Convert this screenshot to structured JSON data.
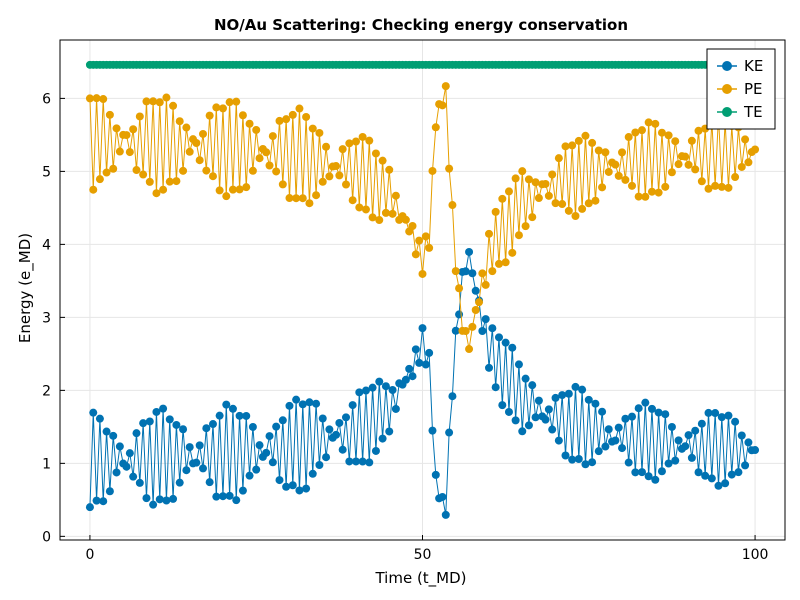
{
  "chart_data": {
    "type": "scatter",
    "title": "NO/Au Scattering: Checking energy conservation",
    "xlabel": "Time (t_MD)",
    "ylabel": "Energy (e_MD)",
    "xlim": [
      -4.5,
      104.5
    ],
    "ylim": [
      -0.05,
      6.8
    ],
    "xticks": [
      0,
      50,
      100
    ],
    "yticks": [
      0,
      1,
      2,
      3,
      4,
      5,
      6
    ],
    "grid": true,
    "legend_position": "top-right",
    "markers": "circle markers joined by thin lines",
    "t_start": 0,
    "t_end": 100,
    "t_step": 0.5,
    "series": [
      {
        "name": "KE",
        "color": "#0072b2",
        "key_points": [
          [
            0,
            0.4
          ],
          [
            10,
            0.45
          ],
          [
            20,
            0.5
          ],
          [
            30,
            0.6
          ],
          [
            40,
            0.9
          ],
          [
            45,
            1.3
          ],
          [
            48,
            1.9
          ],
          [
            50,
            2.4
          ],
          [
            51,
            2.2
          ],
          [
            52,
            0.7
          ],
          [
            53,
            0.35
          ],
          [
            53.5,
            0.28
          ],
          [
            54,
            1.2
          ],
          [
            55,
            2.6
          ],
          [
            56,
            3.4
          ],
          [
            57,
            3.6
          ],
          [
            60,
            2.1
          ],
          [
            65,
            1.4
          ],
          [
            70,
            1.1
          ],
          [
            80,
            0.85
          ],
          [
            90,
            0.75
          ],
          [
            100,
            0.7
          ]
        ],
        "oscillation_amplitude_points": [
          [
            0,
            1.25
          ],
          [
            20,
            1.25
          ],
          [
            35,
            1.2
          ],
          [
            45,
            0.9
          ],
          [
            50,
            0.5
          ],
          [
            52,
            0.15
          ],
          [
            56,
            0.3
          ],
          [
            60,
            0.9
          ],
          [
            70,
            1.0
          ],
          [
            100,
            0.95
          ]
        ]
      },
      {
        "name": "PE",
        "color": "#e69f00",
        "key_points": [
          [
            0,
            6.05
          ],
          [
            10,
            6.0
          ],
          [
            20,
            5.95
          ],
          [
            30,
            5.85
          ],
          [
            40,
            5.55
          ],
          [
            45,
            5.15
          ],
          [
            48,
            4.55
          ],
          [
            50,
            4.05
          ],
          [
            51,
            4.25
          ],
          [
            52,
            5.75
          ],
          [
            53,
            6.1
          ],
          [
            53.5,
            6.18
          ],
          [
            54,
            5.25
          ],
          [
            55,
            3.85
          ],
          [
            56,
            3.05
          ],
          [
            57,
            2.85
          ],
          [
            60,
            4.35
          ],
          [
            65,
            5.05
          ],
          [
            70,
            5.35
          ],
          [
            80,
            5.6
          ],
          [
            90,
            5.7
          ],
          [
            100,
            5.75
          ]
        ],
        "oscillation_amplitude_points": [
          [
            0,
            1.25
          ],
          [
            20,
            1.25
          ],
          [
            35,
            1.2
          ],
          [
            45,
            0.9
          ],
          [
            50,
            0.5
          ],
          [
            52,
            0.15
          ],
          [
            56,
            0.3
          ],
          [
            60,
            0.9
          ],
          [
            70,
            1.0
          ],
          [
            100,
            0.95
          ]
        ]
      },
      {
        "name": "TE",
        "color": "#009e73",
        "constant_value": 6.46
      }
    ]
  }
}
